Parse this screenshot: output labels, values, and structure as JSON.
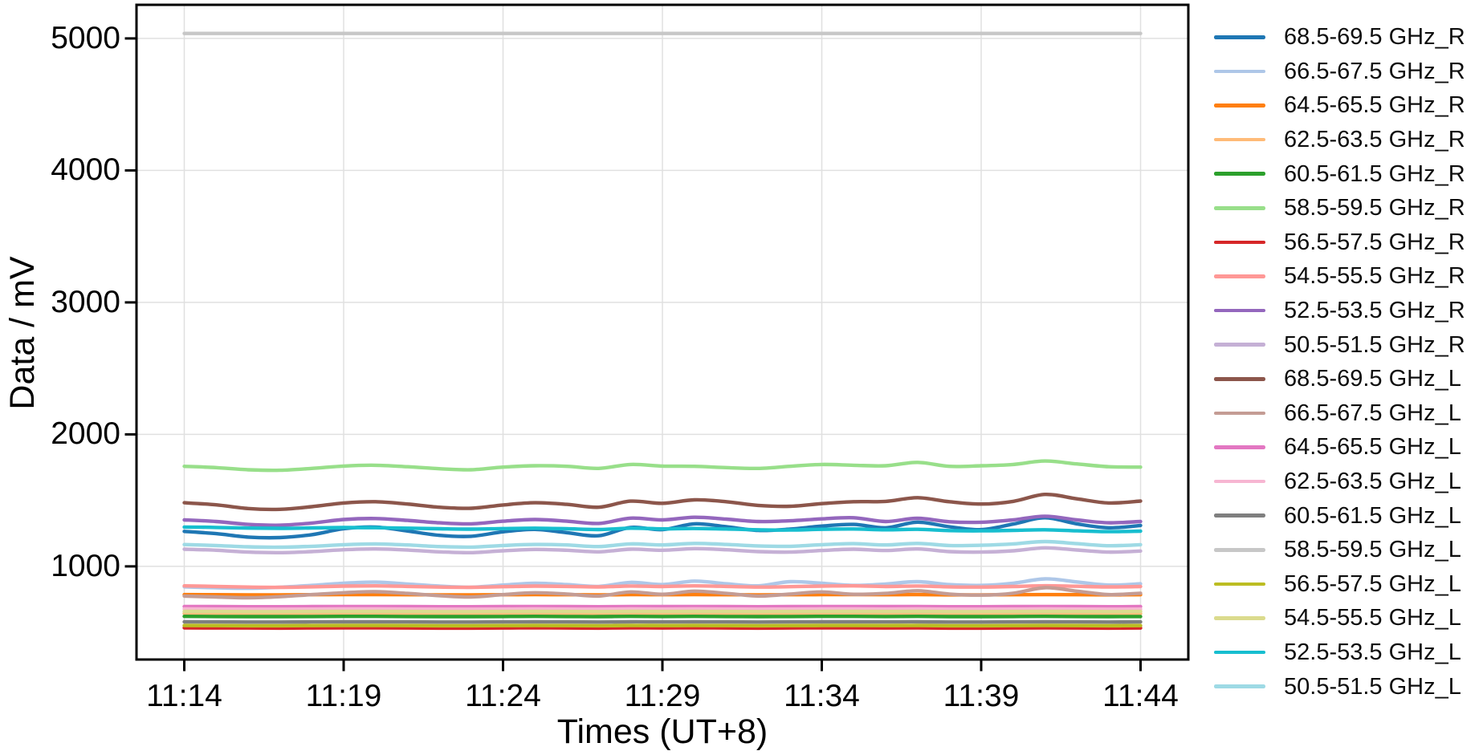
{
  "chart_data": {
    "type": "line",
    "title": "",
    "xlabel": "Times (UT+8)",
    "ylabel": "Data / mV",
    "grid": true,
    "legend_position": "right-outside",
    "axis_color": "#000000",
    "grid_color": "#e0e0e0",
    "xlim_minutes": [
      -1.5,
      31.5
    ],
    "ylim": [
      294,
      5255
    ],
    "x_ticks": [
      {
        "label": "11:14",
        "minute": 0
      },
      {
        "label": "11:19",
        "minute": 5
      },
      {
        "label": "11:24",
        "minute": 10
      },
      {
        "label": "11:29",
        "minute": 15
      },
      {
        "label": "11:34",
        "minute": 20
      },
      {
        "label": "11:39",
        "minute": 25
      },
      {
        "label": "11:44",
        "minute": 30
      }
    ],
    "y_ticks": [
      {
        "label": "1000",
        "value": 1000
      },
      {
        "label": "2000",
        "value": 2000
      },
      {
        "label": "3000",
        "value": 3000
      },
      {
        "label": "4000",
        "value": 4000
      },
      {
        "label": "5000",
        "value": 5000
      }
    ],
    "x_minutes": [
      0,
      1,
      2,
      3,
      4,
      5,
      6,
      7,
      8,
      9,
      10,
      11,
      12,
      13,
      14,
      15,
      16,
      17,
      18,
      19,
      20,
      21,
      22,
      23,
      24,
      25,
      26,
      27,
      28,
      29,
      30
    ],
    "series": [
      {
        "name": "68.5-69.5 GHz_R",
        "color": "#1f77b4",
        "values": [
          1265,
          1248,
          1222,
          1218,
          1240,
          1285,
          1298,
          1268,
          1235,
          1228,
          1262,
          1280,
          1255,
          1232,
          1295,
          1278,
          1322,
          1300,
          1272,
          1282,
          1305,
          1318,
          1292,
          1335,
          1300,
          1278,
          1320,
          1368,
          1322,
          1292,
          1310
        ]
      },
      {
        "name": "66.5-67.5 GHz_R",
        "color": "#aec7e8",
        "values": [
          845,
          838,
          834,
          842,
          856,
          872,
          880,
          866,
          850,
          842,
          858,
          872,
          862,
          848,
          878,
          862,
          888,
          868,
          852,
          884,
          872,
          856,
          866,
          884,
          862,
          856,
          872,
          905,
          882,
          858,
          868
        ]
      },
      {
        "name": "64.5-65.5 GHz_R",
        "color": "#ff7f0e",
        "values": [
          786,
          785,
          784,
          784,
          785,
          786,
          786,
          785,
          784,
          784,
          785,
          786,
          785,
          784,
          786,
          785,
          786,
          785,
          784,
          785,
          786,
          786,
          785,
          786,
          784,
          784,
          785,
          786,
          785,
          784,
          785
        ]
      },
      {
        "name": "62.5-63.5 GHz_R",
        "color": "#ffbb78",
        "values": [
          643,
          642,
          641,
          641,
          642,
          643,
          643,
          642,
          641,
          641,
          642,
          643,
          642,
          641,
          643,
          642,
          643,
          642,
          641,
          642,
          643,
          643,
          642,
          643,
          641,
          641,
          642,
          643,
          642,
          641,
          642
        ]
      },
      {
        "name": "60.5-61.5 GHz_R",
        "color": "#2ca02c",
        "values": [
          621,
          620,
          619,
          619,
          620,
          621,
          621,
          620,
          619,
          619,
          620,
          621,
          620,
          619,
          621,
          620,
          621,
          620,
          619,
          620,
          621,
          621,
          620,
          621,
          619,
          619,
          620,
          621,
          620,
          619,
          620
        ]
      },
      {
        "name": "58.5-59.5 GHz_R",
        "color": "#98df8a",
        "values": [
          1758,
          1748,
          1732,
          1728,
          1742,
          1760,
          1766,
          1755,
          1740,
          1732,
          1752,
          1762,
          1758,
          1742,
          1772,
          1760,
          1758,
          1748,
          1742,
          1758,
          1772,
          1766,
          1762,
          1788,
          1758,
          1762,
          1772,
          1798,
          1776,
          1755,
          1752
        ]
      },
      {
        "name": "56.5-57.5 GHz_R",
        "color": "#d62728",
        "values": [
          534,
          533,
          533,
          532,
          533,
          534,
          534,
          533,
          532,
          532,
          533,
          534,
          533,
          532,
          534,
          533,
          534,
          533,
          532,
          533,
          534,
          534,
          533,
          534,
          532,
          532,
          533,
          534,
          533,
          532,
          533
        ]
      },
      {
        "name": "54.5-55.5 GHz_R",
        "color": "#ff9896",
        "values": [
          852,
          848,
          843,
          841,
          845,
          850,
          852,
          848,
          843,
          841,
          846,
          850,
          848,
          844,
          851,
          847,
          852,
          848,
          843,
          846,
          850,
          852,
          847,
          851,
          845,
          843,
          847,
          853,
          849,
          844,
          847
        ]
      },
      {
        "name": "52.5-53.5 GHz_R",
        "color": "#9467bd",
        "values": [
          1352,
          1340,
          1318,
          1312,
          1328,
          1355,
          1362,
          1348,
          1330,
          1322,
          1342,
          1355,
          1342,
          1325,
          1365,
          1352,
          1372,
          1358,
          1340,
          1345,
          1360,
          1368,
          1340,
          1364,
          1338,
          1334,
          1352,
          1380,
          1352,
          1330,
          1340
        ]
      },
      {
        "name": "50.5-51.5 GHz_R",
        "color": "#c5b0d5",
        "values": [
          1130,
          1122,
          1108,
          1104,
          1112,
          1126,
          1132,
          1124,
          1110,
          1104,
          1118,
          1128,
          1122,
          1110,
          1130,
          1122,
          1134,
          1126,
          1112,
          1108,
          1120,
          1130,
          1120,
          1132,
          1112,
          1108,
          1118,
          1140,
          1124,
          1108,
          1116
        ]
      },
      {
        "name": "68.5-69.5 GHz_L",
        "color": "#8c564b",
        "values": [
          1482,
          1466,
          1438,
          1432,
          1452,
          1480,
          1490,
          1472,
          1448,
          1440,
          1465,
          1482,
          1470,
          1448,
          1494,
          1478,
          1504,
          1490,
          1462,
          1455,
          1475,
          1490,
          1492,
          1520,
          1490,
          1472,
          1492,
          1545,
          1512,
          1480,
          1495
        ]
      },
      {
        "name": "66.5-67.5 GHz_L",
        "color": "#c49c94",
        "values": [
          775,
          768,
          762,
          770,
          786,
          800,
          808,
          795,
          778,
          768,
          786,
          800,
          790,
          775,
          806,
          788,
          812,
          795,
          775,
          790,
          806,
          788,
          795,
          815,
          790,
          782,
          796,
          838,
          812,
          786,
          796
        ]
      },
      {
        "name": "64.5-65.5 GHz_L",
        "color": "#e377c2",
        "values": [
          696,
          695,
          694,
          694,
          695,
          696,
          696,
          695,
          694,
          694,
          695,
          696,
          695,
          694,
          696,
          695,
          696,
          695,
          694,
          695,
          696,
          696,
          695,
          696,
          694,
          694,
          695,
          696,
          695,
          694,
          695
        ]
      },
      {
        "name": "62.5-63.5 GHz_L",
        "color": "#f7b6d2",
        "values": [
          677,
          676,
          675,
          675,
          676,
          677,
          677,
          676,
          675,
          675,
          676,
          677,
          676,
          675,
          677,
          676,
          677,
          676,
          675,
          676,
          677,
          677,
          676,
          677,
          675,
          675,
          676,
          677,
          676,
          675,
          676
        ]
      },
      {
        "name": "60.5-61.5 GHz_L",
        "color": "#7f7f7f",
        "values": [
          580,
          579,
          578,
          578,
          579,
          580,
          580,
          579,
          578,
          578,
          579,
          580,
          579,
          578,
          580,
          579,
          580,
          579,
          578,
          579,
          580,
          580,
          579,
          580,
          578,
          578,
          579,
          580,
          579,
          578,
          579
        ]
      },
      {
        "name": "58.5-59.5 GHz_L",
        "color": "#c7c7c7",
        "values": [
          5038,
          5038,
          5038,
          5038,
          5038,
          5038,
          5038,
          5038,
          5038,
          5038,
          5038,
          5038,
          5038,
          5038,
          5038,
          5038,
          5038,
          5038,
          5038,
          5038,
          5038,
          5038,
          5038,
          5038,
          5038,
          5038,
          5038,
          5038,
          5038,
          5038,
          5038
        ]
      },
      {
        "name": "56.5-57.5 GHz_L",
        "color": "#bcbd22",
        "values": [
          552,
          551,
          550,
          550,
          551,
          552,
          552,
          551,
          550,
          550,
          551,
          552,
          551,
          550,
          552,
          551,
          552,
          551,
          550,
          551,
          552,
          552,
          551,
          552,
          550,
          550,
          551,
          552,
          551,
          550,
          551
        ]
      },
      {
        "name": "54.5-55.5 GHz_L",
        "color": "#dbdb8d",
        "values": [
          659,
          658,
          657,
          657,
          658,
          659,
          659,
          658,
          657,
          657,
          658,
          659,
          658,
          657,
          659,
          658,
          659,
          658,
          657,
          658,
          659,
          659,
          658,
          659,
          657,
          657,
          658,
          659,
          658,
          657,
          658
        ]
      },
      {
        "name": "52.5-53.5 GHz_L",
        "color": "#17becf",
        "values": [
          1298,
          1295,
          1290,
          1288,
          1291,
          1294,
          1293,
          1289,
          1285,
          1282,
          1286,
          1289,
          1285,
          1279,
          1289,
          1284,
          1287,
          1283,
          1277,
          1275,
          1281,
          1283,
          1277,
          1281,
          1271,
          1269,
          1273,
          1277,
          1269,
          1263,
          1267
        ]
      },
      {
        "name": "50.5-51.5 GHz_L",
        "color": "#9edae5",
        "values": [
          1165,
          1158,
          1148,
          1145,
          1152,
          1164,
          1170,
          1162,
          1150,
          1146,
          1158,
          1166,
          1162,
          1150,
          1170,
          1162,
          1174,
          1166,
          1155,
          1152,
          1164,
          1172,
          1162,
          1174,
          1158,
          1160,
          1170,
          1188,
          1172,
          1156,
          1164
        ]
      }
    ]
  }
}
